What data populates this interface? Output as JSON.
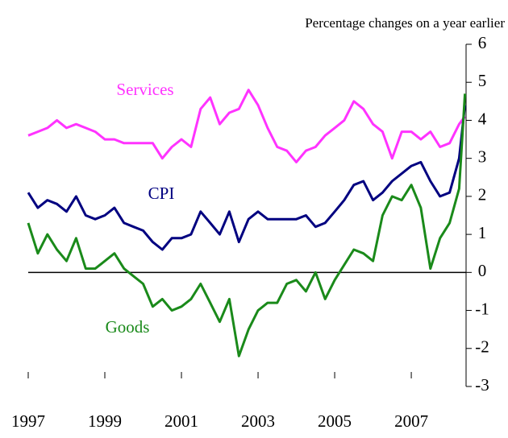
{
  "chart_data": {
    "type": "line",
    "subtitle": "Percentage changes on a year earlier",
    "x": [
      1997,
      1997.25,
      1997.5,
      1997.75,
      1998,
      1998.25,
      1998.5,
      1998.75,
      1999,
      1999.25,
      1999.5,
      1999.75,
      2000,
      2000.25,
      2000.5,
      2000.75,
      2001,
      2001.25,
      2001.5,
      2001.75,
      2002,
      2002.25,
      2002.5,
      2002.75,
      2003,
      2003.25,
      2003.5,
      2003.75,
      2004,
      2004.25,
      2004.5,
      2004.75,
      2005,
      2005.25,
      2005.5,
      2005.75,
      2006,
      2006.25,
      2006.5,
      2006.75,
      2007,
      2007.25,
      2007.5,
      2007.75,
      2008,
      2008.25,
      2008.4
    ],
    "series": [
      {
        "name": "Services",
        "color": "#ff33ff",
        "values": [
          3.6,
          3.7,
          3.8,
          4.0,
          3.8,
          3.9,
          3.8,
          3.7,
          3.5,
          3.5,
          3.4,
          3.4,
          3.4,
          3.4,
          3.0,
          3.3,
          3.5,
          3.3,
          4.3,
          4.6,
          3.9,
          4.2,
          4.3,
          4.8,
          4.4,
          3.8,
          3.3,
          3.2,
          2.9,
          3.2,
          3.3,
          3.6,
          3.8,
          4.0,
          4.5,
          4.3,
          3.9,
          3.7,
          3.0,
          3.7,
          3.7,
          3.5,
          3.7,
          3.3,
          3.4,
          3.9,
          4.1
        ]
      },
      {
        "name": "CPI",
        "color": "#000080",
        "values": [
          2.1,
          1.7,
          1.9,
          1.8,
          1.6,
          2.0,
          1.5,
          1.4,
          1.5,
          1.7,
          1.3,
          1.2,
          1.1,
          0.8,
          0.6,
          0.9,
          0.9,
          1.0,
          1.6,
          1.3,
          1.0,
          1.6,
          0.8,
          1.4,
          1.6,
          1.4,
          1.4,
          1.4,
          1.4,
          1.5,
          1.2,
          1.3,
          1.6,
          1.9,
          2.3,
          2.4,
          1.9,
          2.1,
          2.4,
          2.6,
          2.8,
          2.9,
          2.4,
          2.0,
          2.1,
          3.0,
          4.4
        ]
      },
      {
        "name": "Goods",
        "color": "#1a8a1a",
        "values": [
          1.3,
          0.5,
          1.0,
          0.6,
          0.3,
          0.9,
          0.1,
          0.1,
          0.3,
          0.5,
          0.1,
          -0.1,
          -0.3,
          -0.9,
          -0.7,
          -1.0,
          -0.9,
          -0.7,
          -0.3,
          -0.8,
          -1.3,
          -0.7,
          -2.2,
          -1.5,
          -1.0,
          -0.8,
          -0.8,
          -0.3,
          -0.2,
          -0.5,
          0.0,
          -0.7,
          -0.2,
          0.2,
          0.6,
          0.5,
          0.3,
          1.5,
          2.0,
          1.9,
          2.3,
          1.7,
          0.1,
          0.9,
          1.3,
          2.2,
          4.7
        ]
      }
    ],
    "xlim": [
      1997,
      2008.43
    ],
    "xticks": [
      1997,
      1999,
      2001,
      2003,
      2005,
      2007
    ],
    "ylim": [
      -3,
      6
    ],
    "yticks": [
      -3,
      -2,
      -1,
      0,
      1,
      2,
      3,
      4,
      5,
      6
    ]
  }
}
